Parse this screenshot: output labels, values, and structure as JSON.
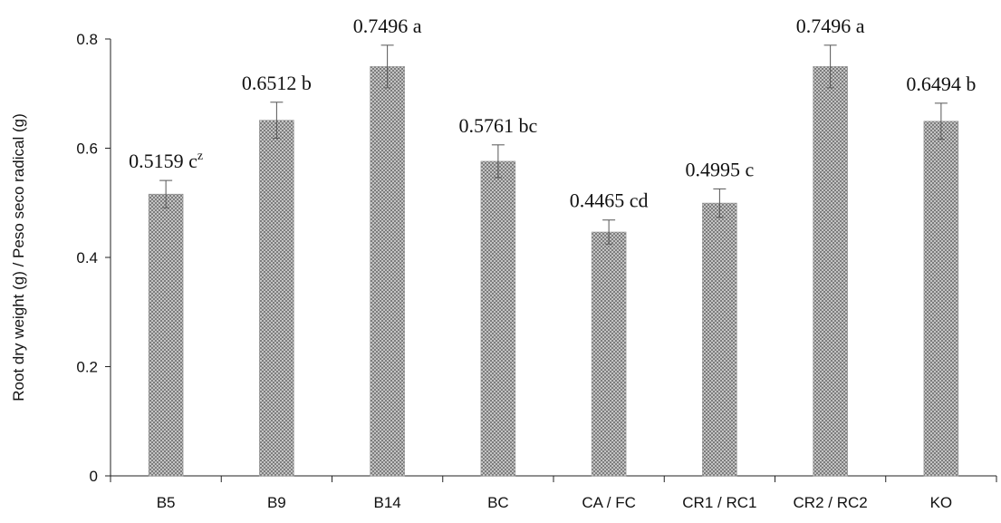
{
  "chart_data": {
    "type": "bar",
    "ylabel": "Root dry weight (g) / Peso seco radical (g)",
    "xlabel": "",
    "ylim": [
      0,
      0.8
    ],
    "yticks": [
      0,
      0.2,
      0.4,
      0.6,
      0.8
    ],
    "ytick_labels": [
      "0",
      "0.2",
      "0.4",
      "0.6",
      "0.8"
    ],
    "grid": false,
    "legend": "none",
    "bar_fill": "crosshatch",
    "bar_color": "#8c8c8c",
    "categories": [
      "B5",
      "B9",
      "B14",
      "BC",
      "CA / FC",
      "CR1 / RC1",
      "CR2 / RC2",
      "KO"
    ],
    "values": [
      0.5159,
      0.6512,
      0.7496,
      0.5761,
      0.4465,
      0.4995,
      0.7496,
      0.6494
    ],
    "errors": [
      0.025,
      0.033,
      0.039,
      0.03,
      0.022,
      0.026,
      0.039,
      0.033
    ],
    "value_labels": [
      "0.5159",
      "0.6512",
      "0.7496",
      "0.5761",
      "0.4465",
      "0.4995",
      "0.7496",
      "0.6494"
    ],
    "letters": [
      "c",
      "b",
      "a",
      "bc",
      "cd",
      "c",
      "a",
      "b"
    ],
    "superscripts": [
      "z",
      "",
      "",
      "",
      "",
      "",
      "",
      ""
    ]
  }
}
